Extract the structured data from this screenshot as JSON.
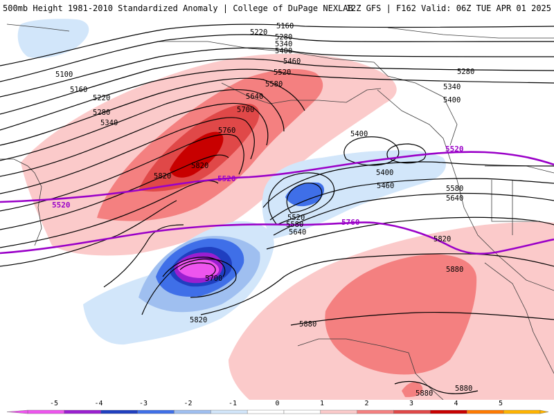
{
  "header": {
    "title": "500mb Height 1981-2010 Standardized Anomaly | College of DuPage NEXLAB",
    "run_info": "12Z GFS | F162 Valid: 06Z TUE APR 01 2025"
  },
  "colorbar": {
    "ticks": [
      "-5",
      "-4",
      "-3",
      "-2",
      "-1",
      "0",
      "1",
      "2",
      "3",
      "4",
      "5"
    ],
    "colors": [
      "#ee55ee",
      "#9a1fd0",
      "#1f3fc0",
      "#3f6fe8",
      "#9fbff0",
      "#d2e6fa",
      "#ffffff",
      "#ffffff",
      "#fbcaca",
      "#f48080",
      "#e04848",
      "#c80000",
      "#ff7a00",
      "#ffb400"
    ]
  },
  "height_labels": [
    "5160",
    "5220",
    "5280",
    "5340",
    "5400",
    "5460",
    "5520",
    "5580",
    "5640",
    "5700",
    "5760",
    "5820",
    "5100",
    "5160",
    "5220",
    "5280",
    "5340",
    "5280",
    "5340",
    "5400",
    "5400",
    "5400",
    "5460",
    "5520",
    "5580",
    "5640",
    "5580",
    "5640",
    "5820",
    "5880",
    "5880",
    "5880",
    "5880",
    "5700",
    "5820",
    "5820"
  ],
  "highlight_labels": [
    "5520",
    "5520",
    "5520",
    "5760"
  ],
  "legend": {
    "anomaly_colors": {
      "neg5": "#ee55ee",
      "neg4": "#9a1fd0",
      "neg3": "#1f3fc0",
      "neg2": "#3f6fe8",
      "neg1": "#9fbff0",
      "neg05": "#d2e6fa",
      "pos1": "#fbcaca",
      "pos2": "#f48080",
      "pos3": "#e04848",
      "pos4": "#c80000"
    },
    "contour_color": "#000000",
    "highlight_contour_color": "#9a00c8"
  }
}
